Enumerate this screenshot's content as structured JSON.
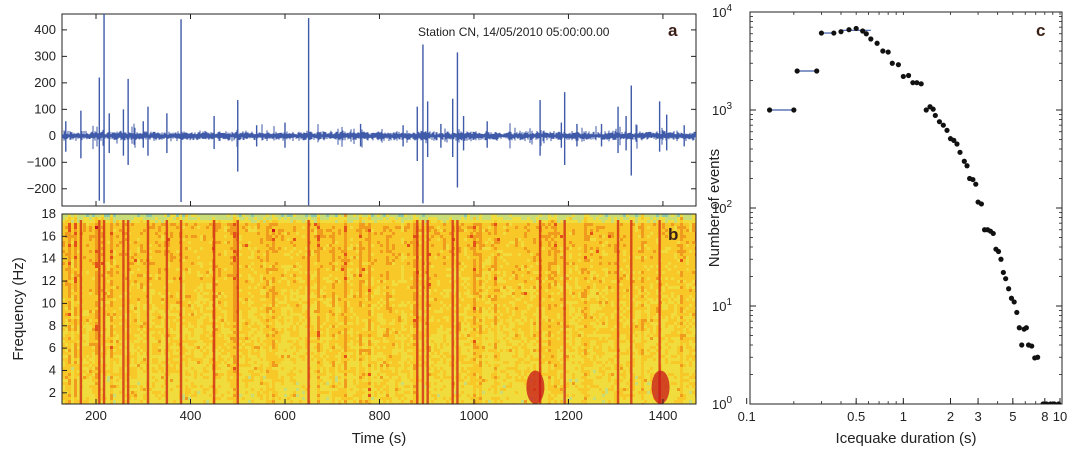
{
  "chart_data": [
    {
      "panel": "a",
      "type": "line",
      "annotation": "Station CN, 14/05/2010  05:00:00.00",
      "xlim": [
        128,
        1470
      ],
      "ylim": [
        -265,
        460
      ],
      "yticks": [
        -200,
        -100,
        0,
        100,
        200,
        300,
        400
      ],
      "ytick_labels": [
        "−200",
        "−100",
        "0",
        "100",
        "200",
        "300",
        "400"
      ],
      "series_color": "#3e5aa8",
      "background_noise_amplitude": 10,
      "spikes": [
        {
          "x": 136,
          "max": 55,
          "min": -60
        },
        {
          "x": 168,
          "max": 95,
          "min": -85
        },
        {
          "x": 207,
          "max": 220,
          "min": -245
        },
        {
          "x": 217,
          "max": 460,
          "min": -255
        },
        {
          "x": 228,
          "max": 85,
          "min": -65
        },
        {
          "x": 258,
          "max": 100,
          "min": -75
        },
        {
          "x": 268,
          "max": 215,
          "min": -110
        },
        {
          "x": 300,
          "max": 55,
          "min": -45
        },
        {
          "x": 310,
          "max": 110,
          "min": -75
        },
        {
          "x": 350,
          "max": 85,
          "min": -65
        },
        {
          "x": 380,
          "max": 440,
          "min": -250
        },
        {
          "x": 450,
          "max": 75,
          "min": -50
        },
        {
          "x": 500,
          "max": 135,
          "min": -135
        },
        {
          "x": 540,
          "max": 40,
          "min": -40
        },
        {
          "x": 600,
          "max": 50,
          "min": -45
        },
        {
          "x": 650,
          "max": 445,
          "min": -262
        },
        {
          "x": 760,
          "max": 45,
          "min": -40
        },
        {
          "x": 850,
          "max": 40,
          "min": -40
        },
        {
          "x": 880,
          "max": 110,
          "min": -95
        },
        {
          "x": 892,
          "max": 345,
          "min": -255
        },
        {
          "x": 902,
          "max": 130,
          "min": -80
        },
        {
          "x": 930,
          "max": 45,
          "min": -45
        },
        {
          "x": 955,
          "max": 140,
          "min": -80
        },
        {
          "x": 965,
          "max": 315,
          "min": -195
        },
        {
          "x": 978,
          "max": 75,
          "min": -55
        },
        {
          "x": 1028,
          "max": 55,
          "min": -45
        },
        {
          "x": 1140,
          "max": 135,
          "min": -75
        },
        {
          "x": 1185,
          "max": 50,
          "min": -45
        },
        {
          "x": 1192,
          "max": 165,
          "min": -110
        },
        {
          "x": 1218,
          "max": 45,
          "min": -40
        },
        {
          "x": 1270,
          "max": 45,
          "min": -40
        },
        {
          "x": 1305,
          "max": 110,
          "min": -65
        },
        {
          "x": 1322,
          "max": 75,
          "min": -55
        },
        {
          "x": 1333,
          "max": 190,
          "min": -150
        },
        {
          "x": 1393,
          "max": 130,
          "min": -60
        },
        {
          "x": 1408,
          "max": 80,
          "min": -55
        },
        {
          "x": 1445,
          "max": 40,
          "min": -40
        }
      ]
    },
    {
      "panel": "b",
      "type": "heatmap",
      "xlabel": "Time (s)",
      "ylabel": "Frequency (Hz)",
      "xlim": [
        128,
        1470
      ],
      "ylim": [
        1,
        18
      ],
      "xticks": [
        200,
        400,
        600,
        800,
        1000,
        1200,
        1400
      ],
      "yticks": [
        2,
        4,
        6,
        8,
        10,
        12,
        14,
        16,
        18
      ],
      "colormap": [
        "#5ab8c8",
        "#8ccaa8",
        "#c8dc78",
        "#f0dc3c",
        "#f8c828",
        "#f09a1e",
        "#e4501a",
        "#c8141a"
      ],
      "red_streak_times": [
        168,
        207,
        217,
        258,
        268,
        310,
        350,
        380,
        450,
        500,
        650,
        880,
        892,
        902,
        955,
        965,
        1140,
        1192,
        1305,
        1333,
        1393
      ],
      "hot_spots": [
        {
          "time": 1130,
          "freq_low": 1,
          "freq_high": 4
        },
        {
          "time": 1395,
          "freq_low": 1,
          "freq_high": 4
        }
      ]
    },
    {
      "panel": "c",
      "type": "scatter",
      "xlabel": "Icequake duration (s)",
      "ylabel": "Number of events",
      "xscale": "log",
      "yscale": "log",
      "xlim": [
        0.105,
        10.3
      ],
      "ylim": [
        1,
        10000
      ],
      "xticks": [
        0.1,
        0.5,
        1,
        2,
        3,
        5,
        8,
        10
      ],
      "xtick_labels": [
        "0.1",
        "0.5",
        "1",
        "2",
        "3",
        "5",
        "8",
        "10"
      ],
      "yticks": [
        1,
        10,
        100,
        1000,
        10000
      ],
      "ytick_labels": [
        [
          "10",
          "0"
        ],
        [
          "10",
          "1"
        ],
        [
          "10",
          "2"
        ],
        [
          "10",
          "3"
        ],
        [
          "10",
          "4"
        ]
      ],
      "marker_color": "#111111",
      "bin_color": "#3e5aa8",
      "points": [
        [
          0.14,
          1000
        ],
        [
          0.2,
          1000
        ],
        [
          0.21,
          2500
        ],
        [
          0.28,
          2500
        ],
        [
          0.3,
          6100
        ],
        [
          0.36,
          6100
        ],
        [
          0.4,
          6300
        ],
        [
          0.45,
          6600
        ],
        [
          0.5,
          6800
        ],
        [
          0.55,
          6400
        ],
        [
          0.58,
          6000
        ],
        [
          0.62,
          5300
        ],
        [
          0.68,
          4800
        ],
        [
          0.74,
          4000
        ],
        [
          0.8,
          3900
        ],
        [
          0.85,
          3000
        ],
        [
          0.93,
          2900
        ],
        [
          1.0,
          2200
        ],
        [
          1.08,
          2250
        ],
        [
          1.15,
          1900
        ],
        [
          1.22,
          1900
        ],
        [
          1.3,
          1850
        ],
        [
          1.4,
          1000
        ],
        [
          1.48,
          1080
        ],
        [
          1.55,
          1020
        ],
        [
          1.6,
          880
        ],
        [
          1.7,
          760
        ],
        [
          1.8,
          700
        ],
        [
          1.9,
          620
        ],
        [
          2.0,
          510
        ],
        [
          2.1,
          490
        ],
        [
          2.2,
          450
        ],
        [
          2.3,
          370
        ],
        [
          2.45,
          300
        ],
        [
          2.55,
          270
        ],
        [
          2.65,
          200
        ],
        [
          2.78,
          195
        ],
        [
          2.9,
          175
        ],
        [
          3.0,
          115
        ],
        [
          3.15,
          110
        ],
        [
          3.3,
          60
        ],
        [
          3.45,
          60
        ],
        [
          3.6,
          58
        ],
        [
          3.75,
          55
        ],
        [
          3.9,
          38
        ],
        [
          4.05,
          36
        ],
        [
          4.2,
          30
        ],
        [
          4.35,
          22
        ],
        [
          4.5,
          19
        ],
        [
          4.7,
          15
        ],
        [
          4.9,
          12
        ],
        [
          5.1,
          11
        ],
        [
          5.3,
          8.6
        ],
        [
          5.5,
          6
        ],
        [
          5.7,
          4
        ],
        [
          5.9,
          5.8
        ],
        [
          6.1,
          6
        ],
        [
          6.3,
          4
        ],
        [
          6.6,
          3.9
        ],
        [
          6.9,
          2.95
        ],
        [
          7.2,
          3.0
        ],
        [
          7.8,
          1.0
        ],
        [
          8.2,
          1.0
        ],
        [
          8.7,
          1.0
        ],
        [
          9.2,
          1.0
        ],
        [
          9.8,
          1.0
        ]
      ],
      "bin_segments": [
        {
          "x0": 0.14,
          "x1": 0.2,
          "y": 1000
        },
        {
          "x0": 0.21,
          "x1": 0.28,
          "y": 2500
        },
        {
          "x0": 0.3,
          "x1": 0.36,
          "y": 6100
        },
        {
          "x0": 0.4,
          "x1": 0.62,
          "y": 6500
        }
      ]
    }
  ]
}
